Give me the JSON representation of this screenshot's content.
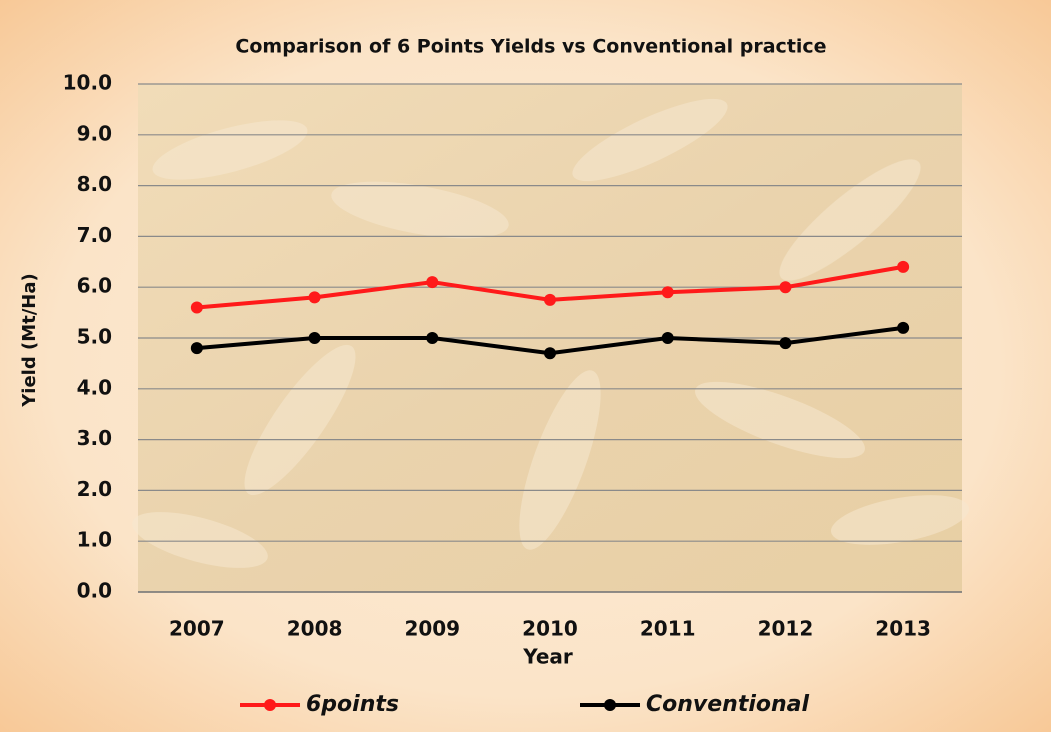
{
  "chart_data": {
    "type": "line",
    "title": "Comparison of 6 Points Yields vs Conventional  practice",
    "x_label": "Year",
    "y_label": "Yield (Mt/Ha)",
    "categories": [
      "2007",
      "2008",
      "2009",
      "2010",
      "2011",
      "2012",
      "2013"
    ],
    "series": [
      {
        "name": "6points",
        "color": "#ff1a1a",
        "values": [
          5.6,
          5.8,
          6.1,
          5.75,
          5.9,
          6.0,
          6.4
        ]
      },
      {
        "name": "Conventional",
        "color": "#000000",
        "values": [
          4.8,
          5.0,
          5.0,
          4.7,
          5.0,
          4.9,
          5.2
        ]
      }
    ],
    "ylim": [
      0,
      10
    ],
    "yticks": [
      {
        "value": 0,
        "label": "0.0"
      },
      {
        "value": 1,
        "label": "1.0"
      },
      {
        "value": 2,
        "label": "2.0"
      },
      {
        "value": 3,
        "label": "3.0"
      },
      {
        "value": 4,
        "label": "4.0"
      },
      {
        "value": 5,
        "label": "5.0"
      },
      {
        "value": 6,
        "label": "6.0"
      },
      {
        "value": 7,
        "label": "7.0"
      },
      {
        "value": 8,
        "label": "8.0"
      },
      {
        "value": 9,
        "label": "9.0"
      },
      {
        "value": 10,
        "label": "10.0"
      }
    ],
    "grid": true,
    "legend": "bottom"
  }
}
